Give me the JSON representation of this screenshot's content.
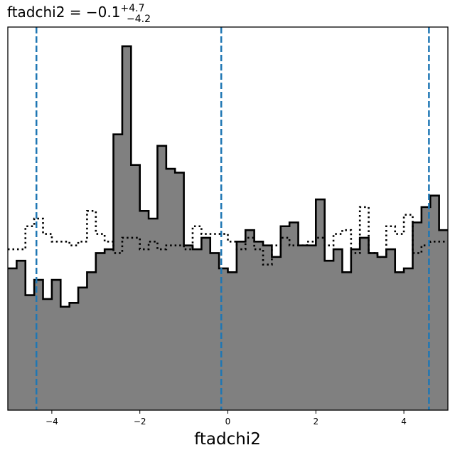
{
  "chart_data": {
    "type": "area",
    "title": {
      "prefix": "ftadchi2 = −0.1",
      "sup": "+4.7",
      "sub": "−4.2"
    },
    "xlabel": "ftadchi2",
    "ylabel": "",
    "xlim": [
      -5.0,
      5.0
    ],
    "ylim": [
      0,
      1.0
    ],
    "y_ticks_visible": false,
    "grid": false,
    "x_ticks": [
      -4,
      -2,
      0,
      2,
      4
    ],
    "x_tick_labels": [
      "−4",
      "−2",
      "0",
      "2",
      "4"
    ],
    "bin_edges": [
      -5.0,
      -4.8,
      -4.6,
      -4.4,
      -4.2,
      -4.0,
      -3.8,
      -3.6,
      -3.4,
      -3.2,
      -3.0,
      -2.8,
      -2.6,
      -2.4,
      -2.2,
      -2.0,
      -1.8,
      -1.6,
      -1.4,
      -1.2,
      -1.0,
      -0.8,
      -0.6,
      -0.4,
      -0.2,
      0.0,
      0.2,
      0.4,
      0.6,
      0.8,
      1.0,
      1.2,
      1.4,
      1.6,
      1.8,
      2.0,
      2.2,
      2.4,
      2.6,
      2.8,
      3.0,
      3.2,
      3.4,
      3.6,
      3.8,
      4.0,
      4.2,
      4.4,
      4.6,
      4.8,
      5.0
    ],
    "series": [
      {
        "style": "filled-step",
        "fill": "#808080",
        "stroke": "#000000",
        "values": [
          0.37,
          0.39,
          0.3,
          0.34,
          0.29,
          0.34,
          0.27,
          0.28,
          0.32,
          0.36,
          0.41,
          0.42,
          0.72,
          0.95,
          0.64,
          0.52,
          0.5,
          0.69,
          0.63,
          0.62,
          0.43,
          0.42,
          0.45,
          0.41,
          0.37,
          0.36,
          0.44,
          0.47,
          0.44,
          0.43,
          0.4,
          0.48,
          0.49,
          0.43,
          0.43,
          0.55,
          0.39,
          0.42,
          0.36,
          0.42,
          0.45,
          0.41,
          0.4,
          0.42,
          0.36,
          0.37,
          0.49,
          0.53,
          0.56,
          0.47
        ]
      },
      {
        "style": "dotted-step",
        "stroke": "#000000",
        "values": [
          0.42,
          0.42,
          0.48,
          0.5,
          0.46,
          0.44,
          0.44,
          0.43,
          0.44,
          0.52,
          0.46,
          0.44,
          0.41,
          0.45,
          0.45,
          0.42,
          0.44,
          0.42,
          0.43,
          0.43,
          0.42,
          0.48,
          0.46,
          0.46,
          0.46,
          0.44,
          0.42,
          0.45,
          0.42,
          0.38,
          0.43,
          0.45,
          0.43,
          0.43,
          0.44,
          0.45,
          0.43,
          0.46,
          0.47,
          0.41,
          0.53,
          0.41,
          0.4,
          0.48,
          0.46,
          0.51,
          0.41,
          0.43,
          0.44,
          0.44
        ]
      }
    ],
    "vlines": [
      {
        "x": -4.35,
        "color": "#1f77b4",
        "style": "dashed"
      },
      {
        "x": -0.15,
        "color": "#1f77b4",
        "style": "dashed"
      },
      {
        "x": 4.57,
        "color": "#1f77b4",
        "style": "dashed"
      }
    ]
  }
}
